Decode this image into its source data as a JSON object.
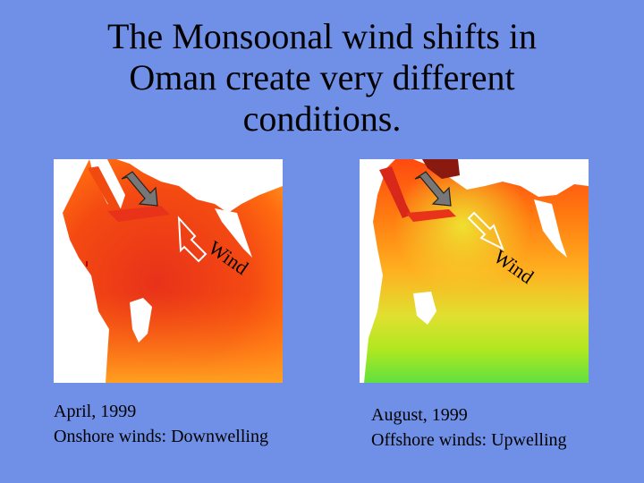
{
  "title": {
    "line1": "The Monsoonal wind shifts in",
    "line2": "Oman create very different",
    "line3": "conditions."
  },
  "panels": [
    {
      "wind_label": "Wind",
      "caption_date": "April, 1999",
      "caption_desc": "Onshore winds: Downwelling",
      "arrow": "wind-arrow-icon"
    },
    {
      "wind_label": "Wind",
      "caption_date": "August, 1999",
      "caption_desc": "Offshore winds: Upwelling",
      "arrow": "wind-arrow-icon"
    }
  ],
  "colors": {
    "background": "#6f90e6",
    "ocean_warm": "#f03a10",
    "ocean_mid": "#ff8a10",
    "ocean_cool": "#90e020",
    "land": "#ffffff"
  }
}
